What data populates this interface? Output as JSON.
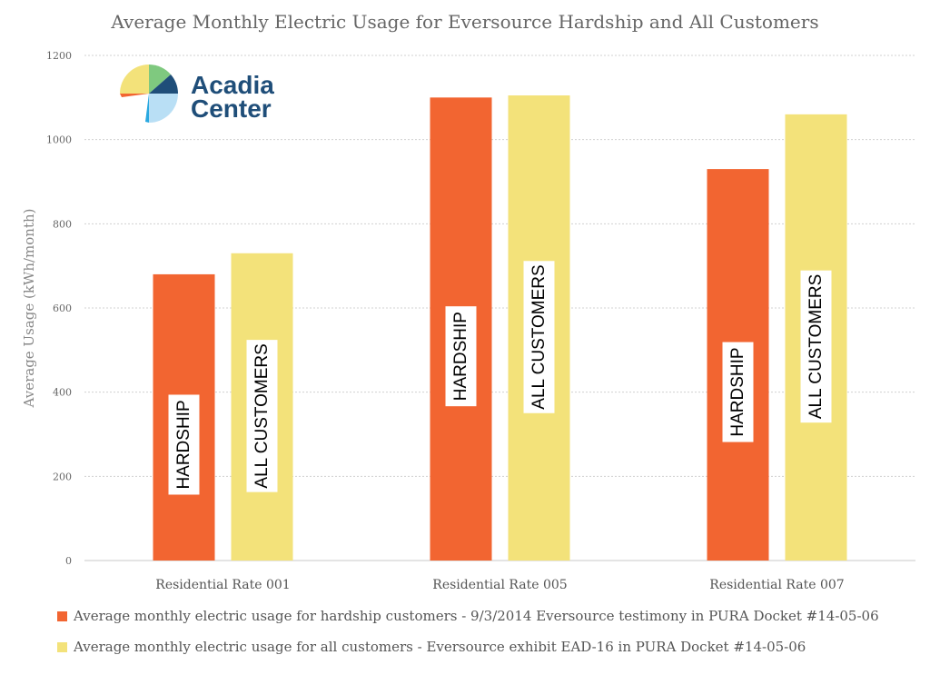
{
  "chart_data": {
    "type": "bar",
    "title": "Average Monthly Electric Usage for Eversource Hardship and All Customers",
    "ylabel": "Average Usage (kWh/month)",
    "xlabel": "",
    "ylim": [
      0,
      1200
    ],
    "yticks": [
      0,
      200,
      400,
      600,
      800,
      1000,
      1200
    ],
    "grid": true,
    "legend_position": "bottom",
    "categories": [
      "Residential Rate 001",
      "Residential Rate 005",
      "Residential Rate 007"
    ],
    "series": [
      {
        "name": "Average monthly electric usage for hardship customers - 9/3/2014 Eversource testimony in PURA Docket #14-05-06",
        "bar_label": "HARDSHIP",
        "color": "#f26531",
        "values": [
          680,
          1100,
          930
        ]
      },
      {
        "name": "Average monthly electric usage for all customers - Eversource exhibit EAD-16 in PURA Docket #14-05-06",
        "bar_label": "ALL CUSTOMERS",
        "color": "#f3e27a",
        "values": [
          730,
          1105,
          1060
        ]
      }
    ]
  },
  "logo": {
    "line1": "Acadia",
    "line2": "Center"
  }
}
